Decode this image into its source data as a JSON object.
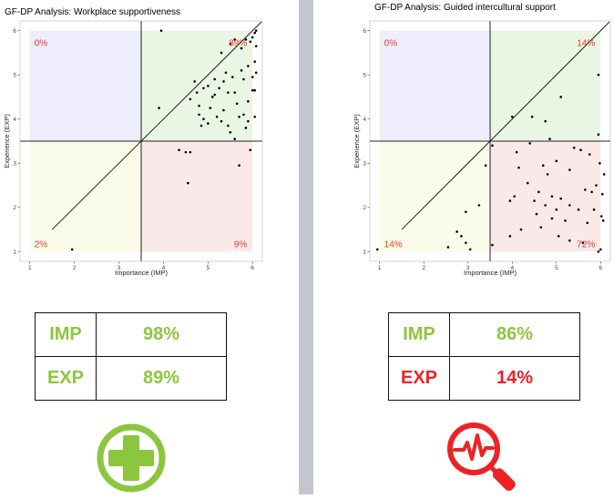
{
  "panels": [
    {
      "id": "left",
      "title": "GF-DP Analysis: Workplace supportiveness",
      "quadrant_labels": {
        "top_left": "0%",
        "top_right": "89%",
        "bottom_left": "2%",
        "bottom_right": "9%"
      },
      "summary": {
        "imp_label": "IMP",
        "imp_value": "98%",
        "imp_color": "#8cc63f",
        "exp_label": "EXP",
        "exp_value": "89%",
        "exp_color": "#8cc63f"
      },
      "icon": "plus-circle-icon"
    },
    {
      "id": "right",
      "title": "GF-DP Analysis: Guided intercultural support",
      "quadrant_labels": {
        "top_left": "0%",
        "top_right": "14%",
        "bottom_left": "14%",
        "bottom_right": "72%"
      },
      "summary": {
        "imp_label": "IMP",
        "imp_value": "86%",
        "imp_color": "#8cc63f",
        "exp_label": "EXP",
        "exp_value": "14%",
        "exp_color": "#ee2222"
      },
      "icon": "magnifier-heartbeat-icon"
    }
  ],
  "colors": {
    "quadrant_top_left": "#ededfb",
    "quadrant_top_right": "#e9f6e4",
    "quadrant_bottom_left": "#fbfbe9",
    "quadrant_bottom_right": "#fbe9ea",
    "label_red": "#e53b2c",
    "green_icon": "#8cc63f",
    "red_icon": "#ee2222"
  },
  "chart_data": [
    {
      "type": "scatter",
      "title": "GF-DP Analysis: Workplace supportiveness",
      "xlabel": "Importance (IMP)",
      "ylabel": "Experience (EXP)",
      "xlim": [
        1,
        6
      ],
      "ylim": [
        1,
        6
      ],
      "xticks": [
        1,
        2,
        3,
        4,
        5,
        6
      ],
      "yticks": [
        1,
        2,
        3,
        4,
        5,
        6
      ],
      "reference_lines": {
        "vertical_x": 3.5,
        "horizontal_y": 3.5,
        "diagonal": "y = x"
      },
      "grid": false,
      "points": [
        [
          1.95,
          1.05
        ],
        [
          3.95,
          6.0
        ],
        [
          3.9,
          4.25
        ],
        [
          4.35,
          3.3
        ],
        [
          4.5,
          3.25
        ],
        [
          4.6,
          3.25
        ],
        [
          4.55,
          2.55
        ],
        [
          4.6,
          4.45
        ],
        [
          4.7,
          4.85
        ],
        [
          4.75,
          4.6
        ],
        [
          4.8,
          4.3
        ],
        [
          4.8,
          4.1
        ],
        [
          4.85,
          3.85
        ],
        [
          4.9,
          4.0
        ],
        [
          4.9,
          4.7
        ],
        [
          5.0,
          4.75
        ],
        [
          5.0,
          3.9
        ],
        [
          5.05,
          4.25
        ],
        [
          5.1,
          4.5
        ],
        [
          5.15,
          4.9
        ],
        [
          5.2,
          4.05
        ],
        [
          5.25,
          4.7
        ],
        [
          5.3,
          3.95
        ],
        [
          5.35,
          4.85
        ],
        [
          5.35,
          4.2
        ],
        [
          5.4,
          5.05
        ],
        [
          5.45,
          3.85
        ],
        [
          5.5,
          3.7
        ],
        [
          5.55,
          4.95
        ],
        [
          5.6,
          5.8
        ],
        [
          5.6,
          4.6
        ],
        [
          5.6,
          3.55
        ],
        [
          5.65,
          4.35
        ],
        [
          5.7,
          4.05
        ],
        [
          5.7,
          2.95
        ],
        [
          5.75,
          5.6
        ],
        [
          5.75,
          5.1
        ],
        [
          5.8,
          4.9
        ],
        [
          5.8,
          4.1
        ],
        [
          5.85,
          3.8
        ],
        [
          5.85,
          5.8
        ],
        [
          5.9,
          5.2
        ],
        [
          5.9,
          4.4
        ],
        [
          5.9,
          3.95
        ],
        [
          5.95,
          5.75
        ],
        [
          5.95,
          3.3
        ],
        [
          6.0,
          5.85
        ],
        [
          6.0,
          4.95
        ],
        [
          6.0,
          4.65
        ],
        [
          6.05,
          5.95
        ],
        [
          6.05,
          5.3
        ],
        [
          6.05,
          4.65
        ],
        [
          6.05,
          4.05
        ],
        [
          6.08,
          6.0
        ],
        [
          6.08,
          5.65
        ],
        [
          6.08,
          5.05
        ],
        [
          5.5,
          5.7
        ],
        [
          5.3,
          5.5
        ],
        [
          5.45,
          4.6
        ],
        [
          5.15,
          4.55
        ]
      ]
    },
    {
      "type": "scatter",
      "title": "GF-DP Analysis: Guided intercultural support",
      "xlabel": "Importance (IMP)",
      "ylabel": "Experience (EXP)",
      "xlim": [
        1,
        6
      ],
      "ylim": [
        1,
        6
      ],
      "xticks": [
        1,
        2,
        3,
        4,
        5,
        6
      ],
      "yticks": [
        1,
        2,
        3,
        4,
        5,
        6
      ],
      "reference_lines": {
        "vertical_x": 3.5,
        "horizontal_y": 3.5,
        "diagonal": "y = x"
      },
      "grid": false,
      "points": [
        [
          0.95,
          1.05
        ],
        [
          2.55,
          1.1
        ],
        [
          2.75,
          1.45
        ],
        [
          2.85,
          1.35
        ],
        [
          2.95,
          1.2
        ],
        [
          2.95,
          1.9
        ],
        [
          3.05,
          1.05
        ],
        [
          3.25,
          2.05
        ],
        [
          3.4,
          2.95
        ],
        [
          3.55,
          1.15
        ],
        [
          3.55,
          3.4
        ],
        [
          3.95,
          1.35
        ],
        [
          3.95,
          2.15
        ],
        [
          4.0,
          4.05
        ],
        [
          4.05,
          2.25
        ],
        [
          4.1,
          3.25
        ],
        [
          4.15,
          2.9
        ],
        [
          4.2,
          1.5
        ],
        [
          4.35,
          2.55
        ],
        [
          4.4,
          3.45
        ],
        [
          4.45,
          4.05
        ],
        [
          4.5,
          2.15
        ],
        [
          4.55,
          1.85
        ],
        [
          4.6,
          2.35
        ],
        [
          4.65,
          1.55
        ],
        [
          4.7,
          2.95
        ],
        [
          4.75,
          2.05
        ],
        [
          4.75,
          3.95
        ],
        [
          4.8,
          2.75
        ],
        [
          4.85,
          3.55
        ],
        [
          4.9,
          1.75
        ],
        [
          4.9,
          2.25
        ],
        [
          5.0,
          1.95
        ],
        [
          5.0,
          3.05
        ],
        [
          5.05,
          1.35
        ],
        [
          5.1,
          4.5
        ],
        [
          5.1,
          2.2
        ],
        [
          5.2,
          1.7
        ],
        [
          5.3,
          2.05
        ],
        [
          5.3,
          2.85
        ],
        [
          5.4,
          3.35
        ],
        [
          5.5,
          1.95
        ],
        [
          5.55,
          3.3
        ],
        [
          5.6,
          1.2
        ],
        [
          5.65,
          2.4
        ],
        [
          5.7,
          1.65
        ],
        [
          5.75,
          3.2
        ],
        [
          5.8,
          2.35
        ],
        [
          5.85,
          1.95
        ],
        [
          5.9,
          2.5
        ],
        [
          5.95,
          3.65
        ],
        [
          5.95,
          5.0
        ],
        [
          5.95,
          1.0
        ],
        [
          5.98,
          3.0
        ],
        [
          6.0,
          1.05
        ],
        [
          6.02,
          1.8
        ],
        [
          6.04,
          2.3
        ],
        [
          6.06,
          1.7
        ],
        [
          6.08,
          2.75
        ],
        [
          5.3,
          1.25
        ]
      ]
    }
  ]
}
